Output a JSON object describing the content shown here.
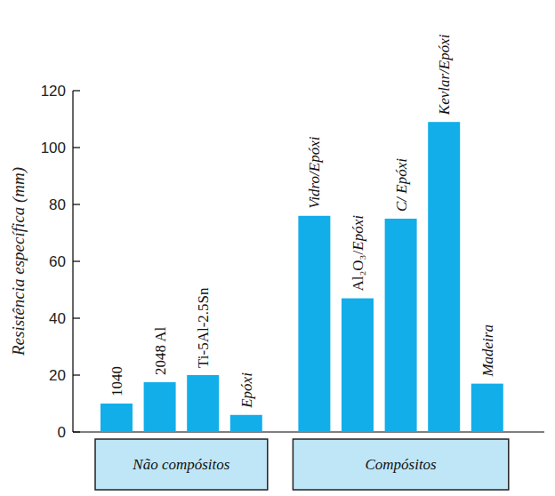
{
  "chart_data": {
    "type": "bar",
    "y_label": "Resistência específica (mm)",
    "categories": [
      "1040",
      "2048 Al",
      "Ti-5Al-2.5Sn",
      "Epóxi",
      "Vidro/Epóxi",
      "Al₂O₃/Epóxi",
      "C/ Epóxi",
      "Kevlar/Epóxi",
      "Madeira"
    ],
    "values": [
      10,
      17.5,
      20,
      6,
      76,
      47,
      75,
      109,
      17
    ],
    "groups": [
      {
        "label": "Não compósitos",
        "count": 4
      },
      {
        "label": "Compósitos",
        "count": 5
      }
    ],
    "color": "#12aeea",
    "ylim": [
      0,
      120
    ],
    "yticks": [
      0,
      20,
      40,
      60,
      80,
      100,
      120
    ],
    "grid": false
  }
}
